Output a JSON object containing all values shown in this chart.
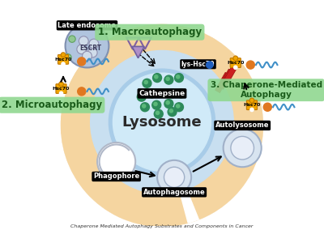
{
  "bg_color": "#ffffff",
  "outer_circle_color": "#f5d5a0",
  "inner_circle_color": "#c8dff0",
  "lysosome_color": "#a8cce8",
  "lysosome_inner_color": "#d0eaf8",
  "label_bg_black": "#1a1a1a",
  "label_text_white": "#ffffff",
  "label_bg_green": "#7dc87d",
  "label_text_dark": "#1a1a1a",
  "hsc70_color": "#f0a500",
  "cathepsine_dots_color": "#2d8a5a",
  "title_macro": "1. Macroautophagy",
  "title_micro": "2. Microautophagy",
  "title_chaperone": "3. Chaperone-Mediated\nAutophagy",
  "label_phagophore": "Phagophore",
  "label_autophagosome": "Autophagosome",
  "label_autolysosome": "Autolysosome",
  "label_cathepsine": "Cathepsine",
  "label_lysosome": "Lysosome",
  "label_lyshsc70": "lys-Hsc70",
  "label_escrt": "ESCRT",
  "label_late_endosome": "Late endosome",
  "orange_dot_color": "#e07820",
  "blue_curl_color": "#4090c8",
  "red_channel_color": "#cc2020",
  "triangle_outline_color": "#8060a0",
  "triangle_fill_color": "#c0a0d0",
  "late_endosome_color": "#b0c4de",
  "late_endosome_border": "#8090b0"
}
